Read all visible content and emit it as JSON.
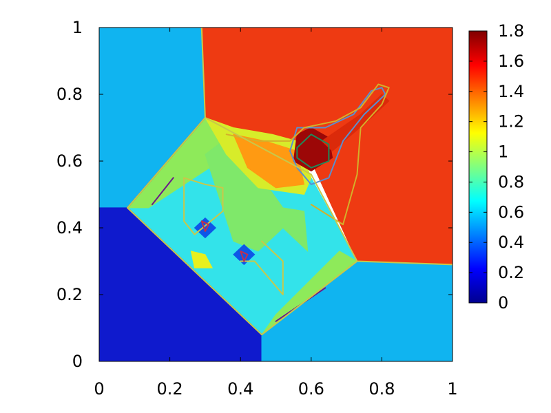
{
  "chart_data": {
    "type": "heatmap",
    "title": "",
    "xlabel": "",
    "ylabel": "",
    "xlim": [
      0,
      1
    ],
    "ylim": [
      0,
      1
    ],
    "grid": false,
    "x_ticks": [
      "0",
      "0.2",
      "0.4",
      "0.6",
      "0.8",
      "1"
    ],
    "y_ticks": [
      "0",
      "0.2",
      "0.4",
      "0.6",
      "0.8",
      "1"
    ],
    "colorbar": {
      "range": [
        0,
        1.8
      ],
      "ticks": [
        "0",
        "0.2",
        "0.4",
        "0.6",
        "0.8",
        "1",
        "1.2",
        "1.4",
        "1.6",
        "1.8"
      ],
      "colormap": "jet",
      "stops": [
        "#00008f",
        "#0000ff",
        "#0080ff",
        "#00ffff",
        "#80ff80",
        "#ffff00",
        "#ff8000",
        "#ff0000",
        "#800000"
      ]
    },
    "regions": [
      {
        "name": "upper-left quadrant",
        "value": 0.5,
        "color": "#10b4f0",
        "polygon": [
          [
            0,
            1
          ],
          [
            0.29,
            1
          ],
          [
            0.3,
            0.73
          ],
          [
            0.08,
            0.46
          ],
          [
            0,
            0.46
          ]
        ]
      },
      {
        "name": "upper-right quadrant",
        "value": 1.5,
        "color": "#ee3a12",
        "polygon": [
          [
            0.29,
            1
          ],
          [
            1,
            1
          ],
          [
            1,
            0.29
          ],
          [
            0.73,
            0.3
          ],
          [
            0.6,
            0.6
          ],
          [
            0.3,
            0.73
          ]
        ]
      },
      {
        "name": "lower-left quadrant",
        "value": 0.14,
        "color": "#0f1acd",
        "polygon": [
          [
            0,
            0.46
          ],
          [
            0.08,
            0.46
          ],
          [
            0.46,
            0.08
          ],
          [
            0.46,
            0
          ],
          [
            0,
            0
          ]
        ]
      },
      {
        "name": "lower-right quadrant",
        "value": 0.5,
        "color": "#10b4f0",
        "polygon": [
          [
            0.46,
            0
          ],
          [
            1,
            0
          ],
          [
            1,
            0.29
          ],
          [
            0.73,
            0.3
          ],
          [
            0.46,
            0.08
          ]
        ]
      },
      {
        "name": "central interaction zone",
        "value": 0.62,
        "color": "#33e3ea",
        "polygon": [
          [
            0.08,
            0.46
          ],
          [
            0.3,
            0.73
          ],
          [
            0.45,
            0.6
          ],
          [
            0.6,
            0.55
          ],
          [
            0.73,
            0.3
          ],
          [
            0.46,
            0.08
          ]
        ]
      },
      {
        "name": "upper-left contact band",
        "value": 0.78,
        "color": "#8eea5a",
        "polygon": [
          [
            0.08,
            0.46
          ],
          [
            0.3,
            0.73
          ],
          [
            0.37,
            0.62
          ],
          [
            0.14,
            0.46
          ]
        ]
      },
      {
        "name": "lower-right contact band",
        "value": 0.78,
        "color": "#8eea5a",
        "polygon": [
          [
            0.46,
            0.08
          ],
          [
            0.73,
            0.3
          ],
          [
            0.68,
            0.33
          ],
          [
            0.5,
            0.14
          ]
        ]
      },
      {
        "name": "mushroom jet cap",
        "value": 0.82,
        "color": "#7fe86a",
        "polygon": [
          [
            0.38,
            0.36
          ],
          [
            0.3,
            0.62
          ],
          [
            0.35,
            0.66
          ],
          [
            0.44,
            0.58
          ],
          [
            0.52,
            0.46
          ],
          [
            0.58,
            0.45
          ],
          [
            0.59,
            0.33
          ],
          [
            0.52,
            0.4
          ],
          [
            0.45,
            0.33
          ]
        ]
      },
      {
        "name": "upper vortex lobe",
        "value": 0.95,
        "color": "#d7ec2a",
        "polygon": [
          [
            0.3,
            0.73
          ],
          [
            0.38,
            0.7
          ],
          [
            0.49,
            0.68
          ],
          [
            0.56,
            0.66
          ],
          [
            0.6,
            0.55
          ],
          [
            0.58,
            0.5
          ],
          [
            0.45,
            0.52
          ],
          [
            0.36,
            0.62
          ]
        ]
      },
      {
        "name": "upper vortex orange ring",
        "value": 1.25,
        "color": "#ff9a12",
        "polygon": [
          [
            0.38,
            0.68
          ],
          [
            0.47,
            0.66
          ],
          [
            0.56,
            0.63
          ],
          [
            0.58,
            0.53
          ],
          [
            0.5,
            0.52
          ],
          [
            0.42,
            0.58
          ]
        ]
      },
      {
        "name": "dense knot",
        "value": 1.7,
        "color": "#9c0707",
        "polygon": [
          [
            0.56,
            0.68
          ],
          [
            0.6,
            0.7
          ],
          [
            0.65,
            0.67
          ],
          [
            0.66,
            0.61
          ],
          [
            0.6,
            0.57
          ],
          [
            0.55,
            0.6
          ]
        ]
      },
      {
        "name": "thin jet streak",
        "value": 1.5,
        "color": "#db2a0a",
        "polygon": [
          [
            0.63,
            0.66
          ],
          [
            0.74,
            0.74
          ],
          [
            0.8,
            0.8
          ],
          [
            0.82,
            0.78
          ],
          [
            0.76,
            0.72
          ],
          [
            0.66,
            0.63
          ]
        ]
      },
      {
        "name": "left vortex core",
        "value": 0.32,
        "color": "#0e56e7",
        "polygon": [
          [
            0.27,
            0.4
          ],
          [
            0.3,
            0.43
          ],
          [
            0.33,
            0.4
          ],
          [
            0.3,
            0.37
          ]
        ]
      },
      {
        "name": "right vortex core",
        "value": 0.32,
        "color": "#0e56e7",
        "polygon": [
          [
            0.38,
            0.32
          ],
          [
            0.41,
            0.35
          ],
          [
            0.44,
            0.32
          ],
          [
            0.41,
            0.29
          ]
        ]
      },
      {
        "name": "lower-left yellow pocket",
        "value": 1.0,
        "color": "#e8f01e",
        "polygon": [
          [
            0.26,
            0.33
          ],
          [
            0.3,
            0.32
          ],
          [
            0.32,
            0.28
          ],
          [
            0.27,
            0.28
          ]
        ]
      }
    ],
    "contours": [
      {
        "level": 1.6,
        "color": "#1e8a5a",
        "points": [
          [
            0.56,
            0.64
          ],
          [
            0.6,
            0.68
          ],
          [
            0.65,
            0.65
          ],
          [
            0.65,
            0.6
          ],
          [
            0.6,
            0.58
          ],
          [
            0.56,
            0.61
          ],
          [
            0.56,
            0.64
          ]
        ]
      },
      {
        "level": 1.4,
        "color": "#5a8fd0",
        "points": [
          [
            0.56,
            0.7
          ],
          [
            0.64,
            0.7
          ],
          [
            0.72,
            0.74
          ],
          [
            0.77,
            0.81
          ],
          [
            0.8,
            0.82
          ],
          [
            0.81,
            0.8
          ],
          [
            0.75,
            0.74
          ],
          [
            0.69,
            0.66
          ],
          [
            0.65,
            0.55
          ],
          [
            0.6,
            0.53
          ],
          [
            0.56,
            0.58
          ],
          [
            0.54,
            0.63
          ],
          [
            0.56,
            0.7
          ]
        ]
      },
      {
        "level": 1.2,
        "color": "#d4b02a",
        "points": [
          [
            0.36,
            0.68
          ],
          [
            0.45,
            0.66
          ],
          [
            0.54,
            0.66
          ],
          [
            0.58,
            0.7
          ],
          [
            0.67,
            0.72
          ],
          [
            0.74,
            0.76
          ],
          [
            0.79,
            0.83
          ],
          [
            0.82,
            0.82
          ],
          [
            0.8,
            0.77
          ],
          [
            0.74,
            0.7
          ],
          [
            0.73,
            0.56
          ],
          [
            0.69,
            0.41
          ],
          [
            0.6,
            0.47
          ]
        ]
      },
      {
        "level": 0.05,
        "color": "#6b1a8a",
        "points": [
          [
            0.08,
            0.46
          ],
          [
            0.3,
            0.73
          ]
        ]
      },
      {
        "level": 0.05,
        "color": "#6b1a8a",
        "points": [
          [
            0.08,
            0.46
          ],
          [
            0.46,
            0.08
          ]
        ]
      },
      {
        "level": 0.05,
        "color": "#6b1a8a",
        "points": [
          [
            0.15,
            0.47
          ],
          [
            0.21,
            0.55
          ]
        ]
      },
      {
        "level": 0.05,
        "color": "#6b1a8a",
        "points": [
          [
            0.5,
            0.12
          ],
          [
            0.64,
            0.22
          ]
        ]
      },
      {
        "level": 0.9,
        "color": "#c8c84a",
        "points": [
          [
            0.29,
            1
          ],
          [
            0.3,
            0.73
          ],
          [
            0.6,
            0.56
          ],
          [
            0.73,
            0.3
          ],
          [
            1,
            0.29
          ]
        ]
      },
      {
        "level": 0.9,
        "color": "#c8c84a",
        "points": [
          [
            0.3,
            0.73
          ],
          [
            0.08,
            0.46
          ],
          [
            0.46,
            0.08
          ],
          [
            0.73,
            0.3
          ]
        ]
      },
      {
        "level": 0.7,
        "color": "#c8c84a",
        "points": [
          [
            0.24,
            0.55
          ],
          [
            0.3,
            0.53
          ],
          [
            0.35,
            0.52
          ],
          [
            0.35,
            0.45
          ],
          [
            0.27,
            0.38
          ],
          [
            0.24,
            0.42
          ],
          [
            0.24,
            0.55
          ]
        ]
      },
      {
        "level": 0.7,
        "color": "#c8c84a",
        "points": [
          [
            0.4,
            0.3
          ],
          [
            0.44,
            0.3
          ],
          [
            0.52,
            0.2
          ],
          [
            0.52,
            0.3
          ],
          [
            0.46,
            0.36
          ]
        ]
      },
      {
        "level": 0.5,
        "color": "#c03050",
        "points": [
          [
            0.29,
            0.42
          ],
          [
            0.31,
            0.41
          ],
          [
            0.3,
            0.39
          ],
          [
            0.29,
            0.42
          ]
        ]
      },
      {
        "level": 0.5,
        "color": "#c03050",
        "points": [
          [
            0.4,
            0.33
          ],
          [
            0.42,
            0.32
          ],
          [
            0.41,
            0.3
          ],
          [
            0.4,
            0.33
          ]
        ]
      }
    ]
  }
}
